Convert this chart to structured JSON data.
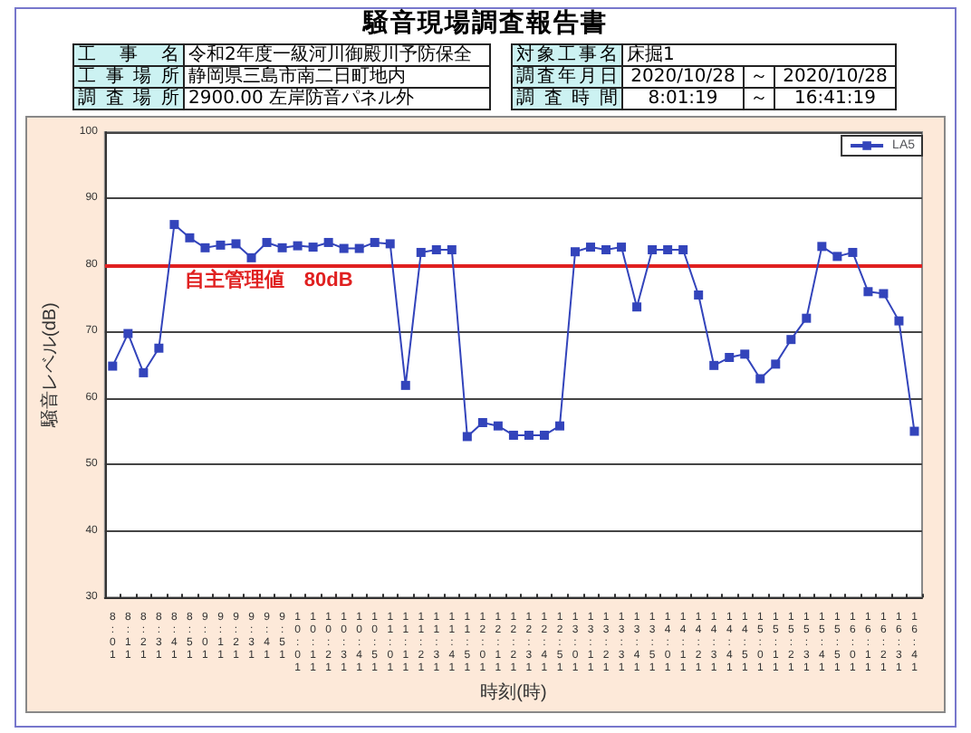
{
  "chart_data": {
    "type": "line",
    "title": "騒音現場調査報告書",
    "xlabel": "時刻(時)",
    "ylabel": "騒音レベル(dB)",
    "annotations": [
      "工事名",
      "令和2年度一級河川御殿川予防保全",
      "工事場所",
      "静岡県三島市南二日町地内",
      "調査場所",
      "2900.00 左岸防音パネル外",
      "対象工事名",
      "床掘1",
      "調査年月日",
      "2020/10/28",
      "～",
      "2020/10/28",
      "調査時間",
      "8:01:19",
      "～",
      "16:41:19"
    ],
    "categories": [
      "8:01",
      "8:11",
      "8:21",
      "8:31",
      "8:41",
      "8:51",
      "9:01",
      "9:11",
      "9:21",
      "9:31",
      "9:41",
      "9:51",
      "10:01",
      "10:11",
      "10:21",
      "10:31",
      "10:41",
      "10:51",
      "11:01",
      "11:11",
      "11:21",
      "11:31",
      "11:41",
      "11:51",
      "12:01",
      "12:11",
      "12:21",
      "12:31",
      "12:41",
      "12:51",
      "13:01",
      "13:11",
      "13:21",
      "13:31",
      "13:41",
      "13:51",
      "14:01",
      "14:11",
      "14:21",
      "14:31",
      "14:41",
      "14:51",
      "15:01",
      "15:11",
      "15:21",
      "15:31",
      "15:41",
      "15:51",
      "16:01",
      "16:11",
      "16:21",
      "16:31",
      "16:41"
    ],
    "series": [
      {
        "name": "LA5",
        "color": "#3344bb",
        "values": [
          64.8,
          69.7,
          63.8,
          67.5,
          86.1,
          84.1,
          82.6,
          83.0,
          83.2,
          81.1,
          83.4,
          82.6,
          82.9,
          82.7,
          83.4,
          82.5,
          82.5,
          83.4,
          83.2,
          61.9,
          81.9,
          82.3,
          82.3,
          54.2,
          56.3,
          55.8,
          54.4,
          54.4,
          54.4,
          55.8,
          82.0,
          82.7,
          82.3,
          82.7,
          73.7,
          82.3,
          82.3,
          82.3,
          75.5,
          64.9,
          66.1,
          66.6,
          62.9,
          65.1,
          68.8,
          72.0,
          82.8,
          81.3,
          81.9,
          76.0,
          75.7,
          71.6,
          55.0
        ]
      }
    ],
    "ylim": [
      30,
      100
    ],
    "yticks": [
      30,
      40,
      50,
      60,
      70,
      80,
      90,
      100
    ],
    "ref_lines": [
      {
        "axis": "y",
        "value": 80,
        "label": "自主管理値　80dB",
        "color": "#e02020"
      }
    ],
    "grid": "y",
    "legend": "top right",
    "marker": "square",
    "line_style": "solid"
  }
}
